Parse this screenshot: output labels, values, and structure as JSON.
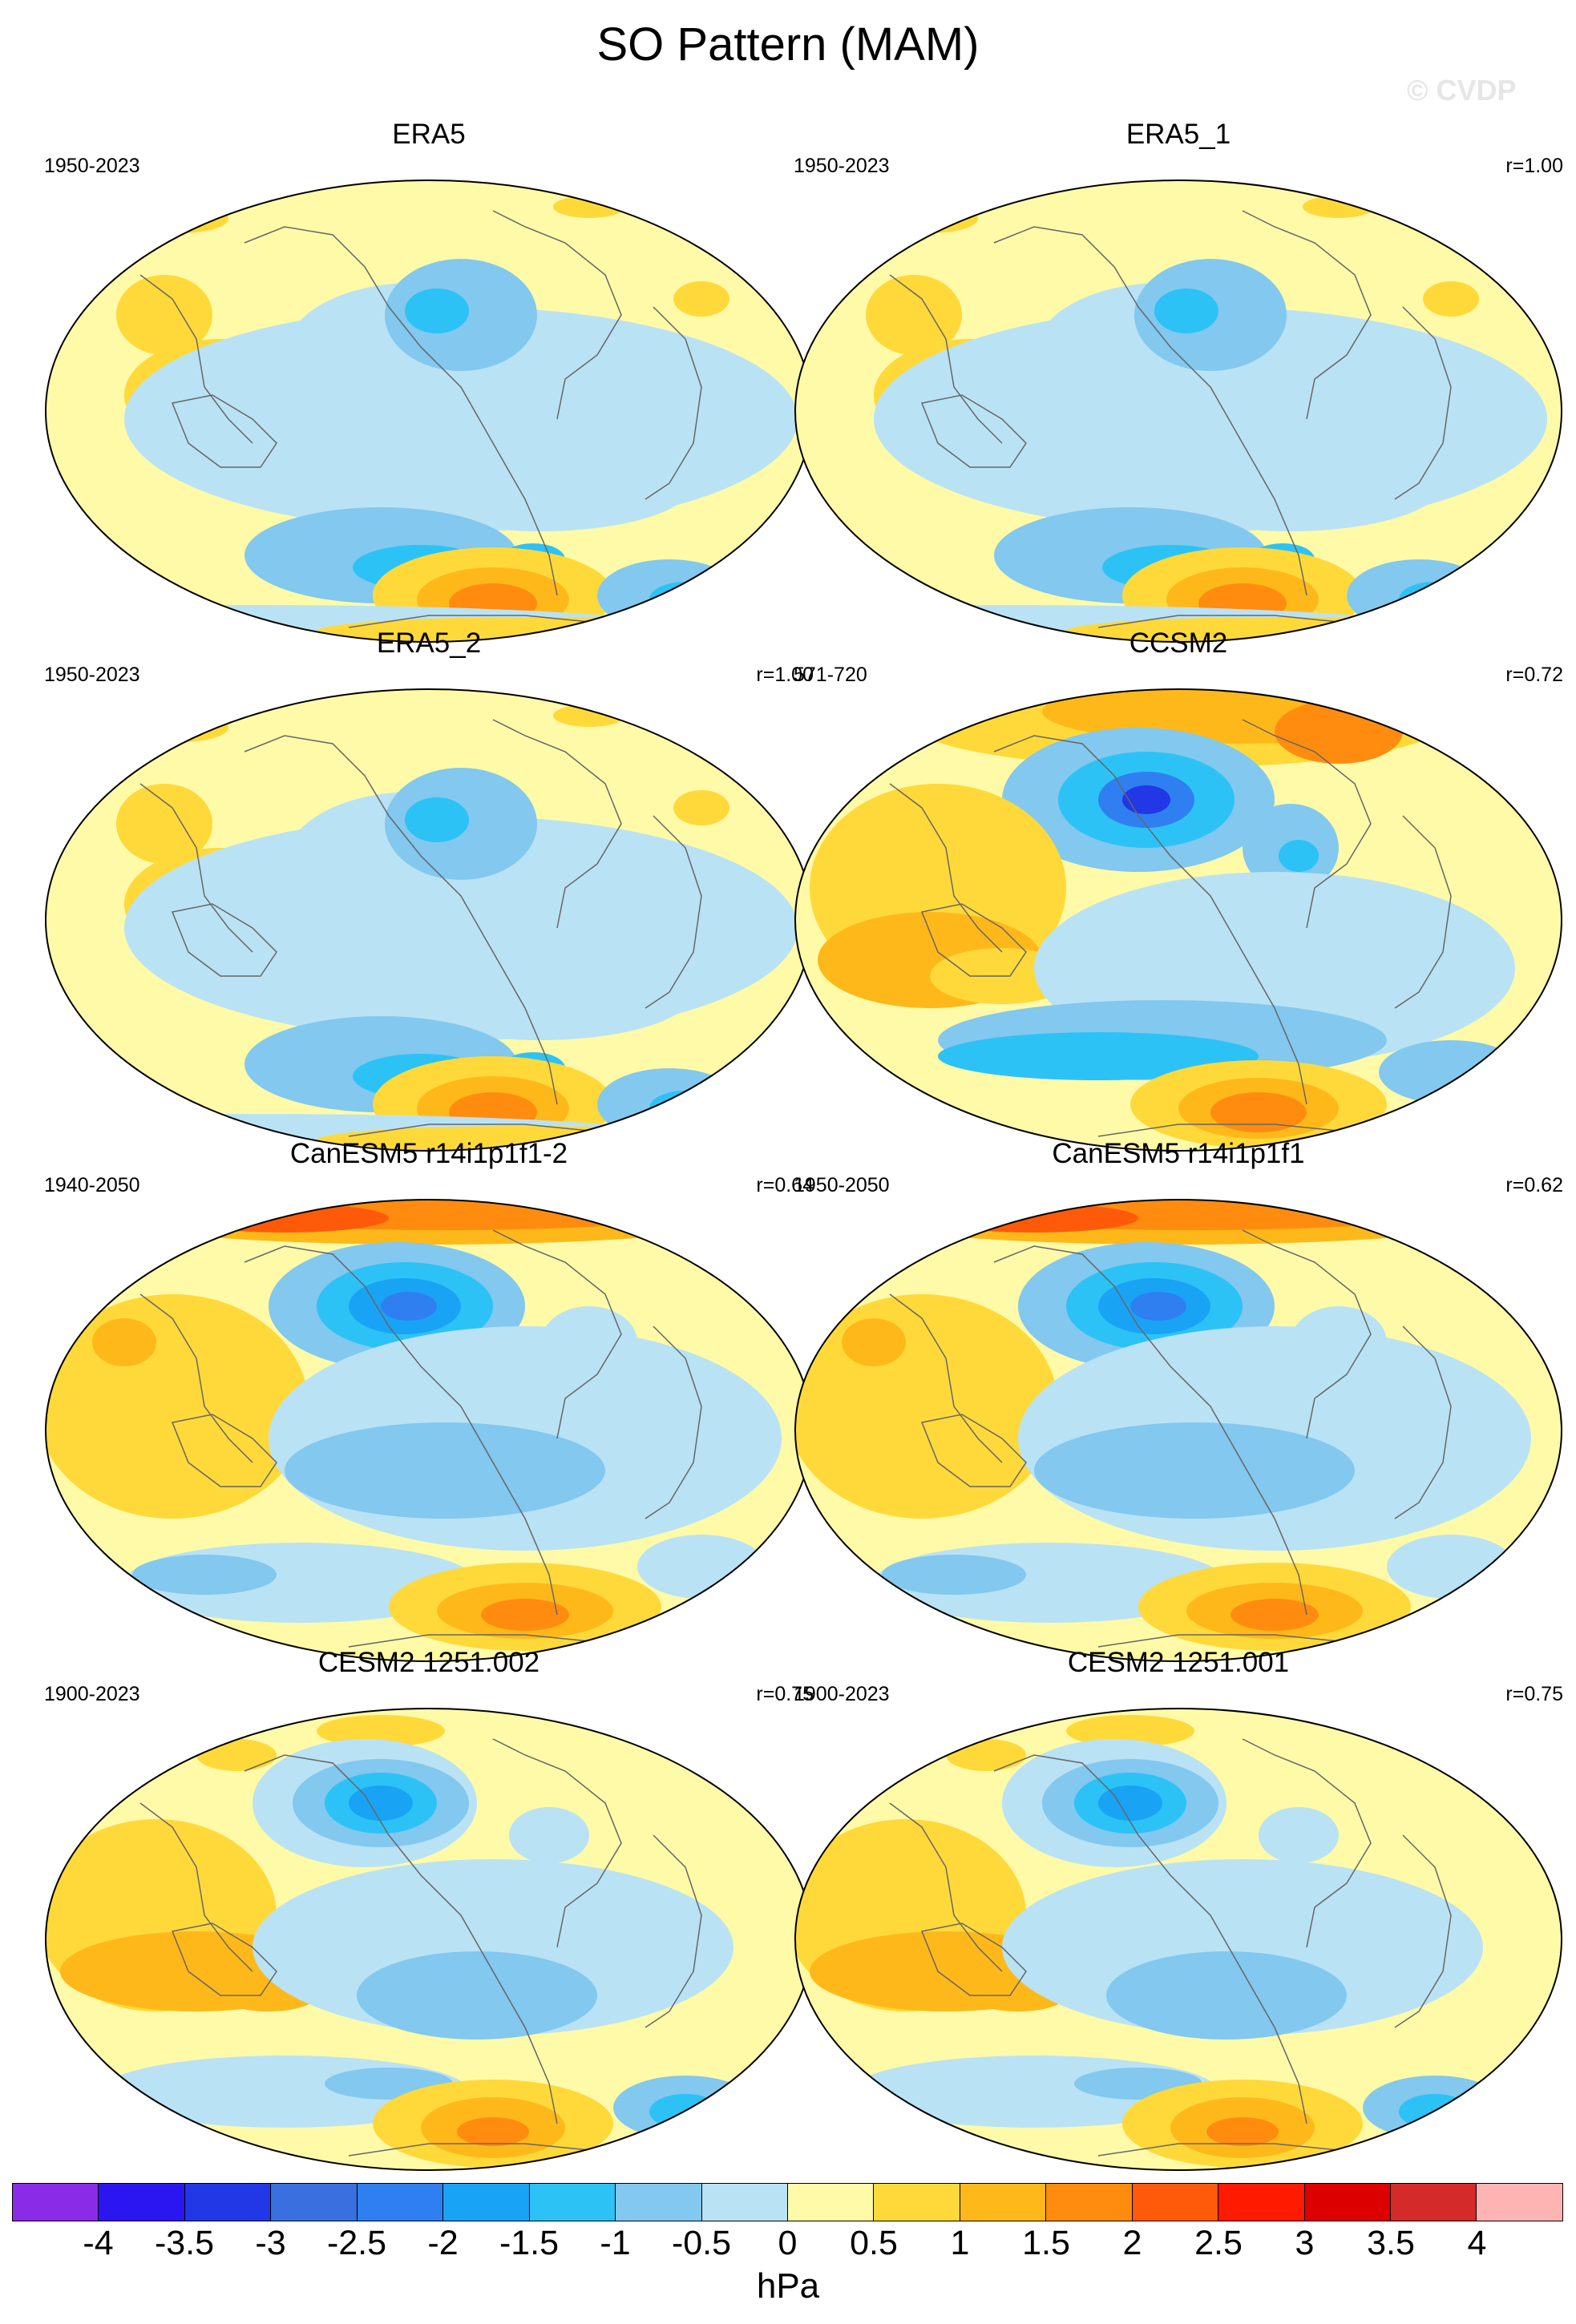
{
  "figure": {
    "title": "SO Pattern (MAM)",
    "watermark": "© CVDP",
    "units": "hPa"
  },
  "panels": [
    {
      "title": "ERA5",
      "years": "1950-2023",
      "corr": "",
      "pattern": "era5"
    },
    {
      "title": "ERA5_1",
      "years": "1950-2023",
      "corr": "r=1.00",
      "pattern": "era5"
    },
    {
      "title": "ERA5_2",
      "years": "1950-2023",
      "corr": "r=1.00",
      "pattern": "era5"
    },
    {
      "title": "CCSM2",
      "years": "571-720",
      "corr": "r=0.72",
      "pattern": "ccsm2"
    },
    {
      "title": "CanESM5 r14i1p1f1-2",
      "years": "1940-2050",
      "corr": "r=0.64",
      "pattern": "canesm"
    },
    {
      "title": "CanESM5 r14i1p1f1",
      "years": "1950-2050",
      "corr": "r=0.62",
      "pattern": "canesm"
    },
    {
      "title": "CESM2 1251.002",
      "years": "1900-2023",
      "corr": "r=0.75",
      "pattern": "cesm"
    },
    {
      "title": "CESM2 1251.001",
      "years": "1900-2023",
      "corr": "r=0.75",
      "pattern": "cesm"
    }
  ],
  "colorbar": {
    "ticks": [
      "-4",
      "-3.5",
      "-3",
      "-2.5",
      "-2",
      "-1.5",
      "-1",
      "-0.5",
      "0",
      "0.5",
      "1",
      "1.5",
      "2",
      "2.5",
      "3",
      "3.5",
      "4"
    ],
    "colors": [
      "#8a2be8",
      "#2b16f2",
      "#2237e6",
      "#3a6fe0",
      "#2f7ff0",
      "#19a3f5",
      "#2dc2f6",
      "#82c8ef",
      "#b9e2f5",
      "#fffaa8",
      "#ffd93a",
      "#ffb81a",
      "#ff8c0f",
      "#ff5a0a",
      "#ff1a00",
      "#dc0000",
      "#d42a2a",
      "#ffb4b4"
    ]
  }
}
